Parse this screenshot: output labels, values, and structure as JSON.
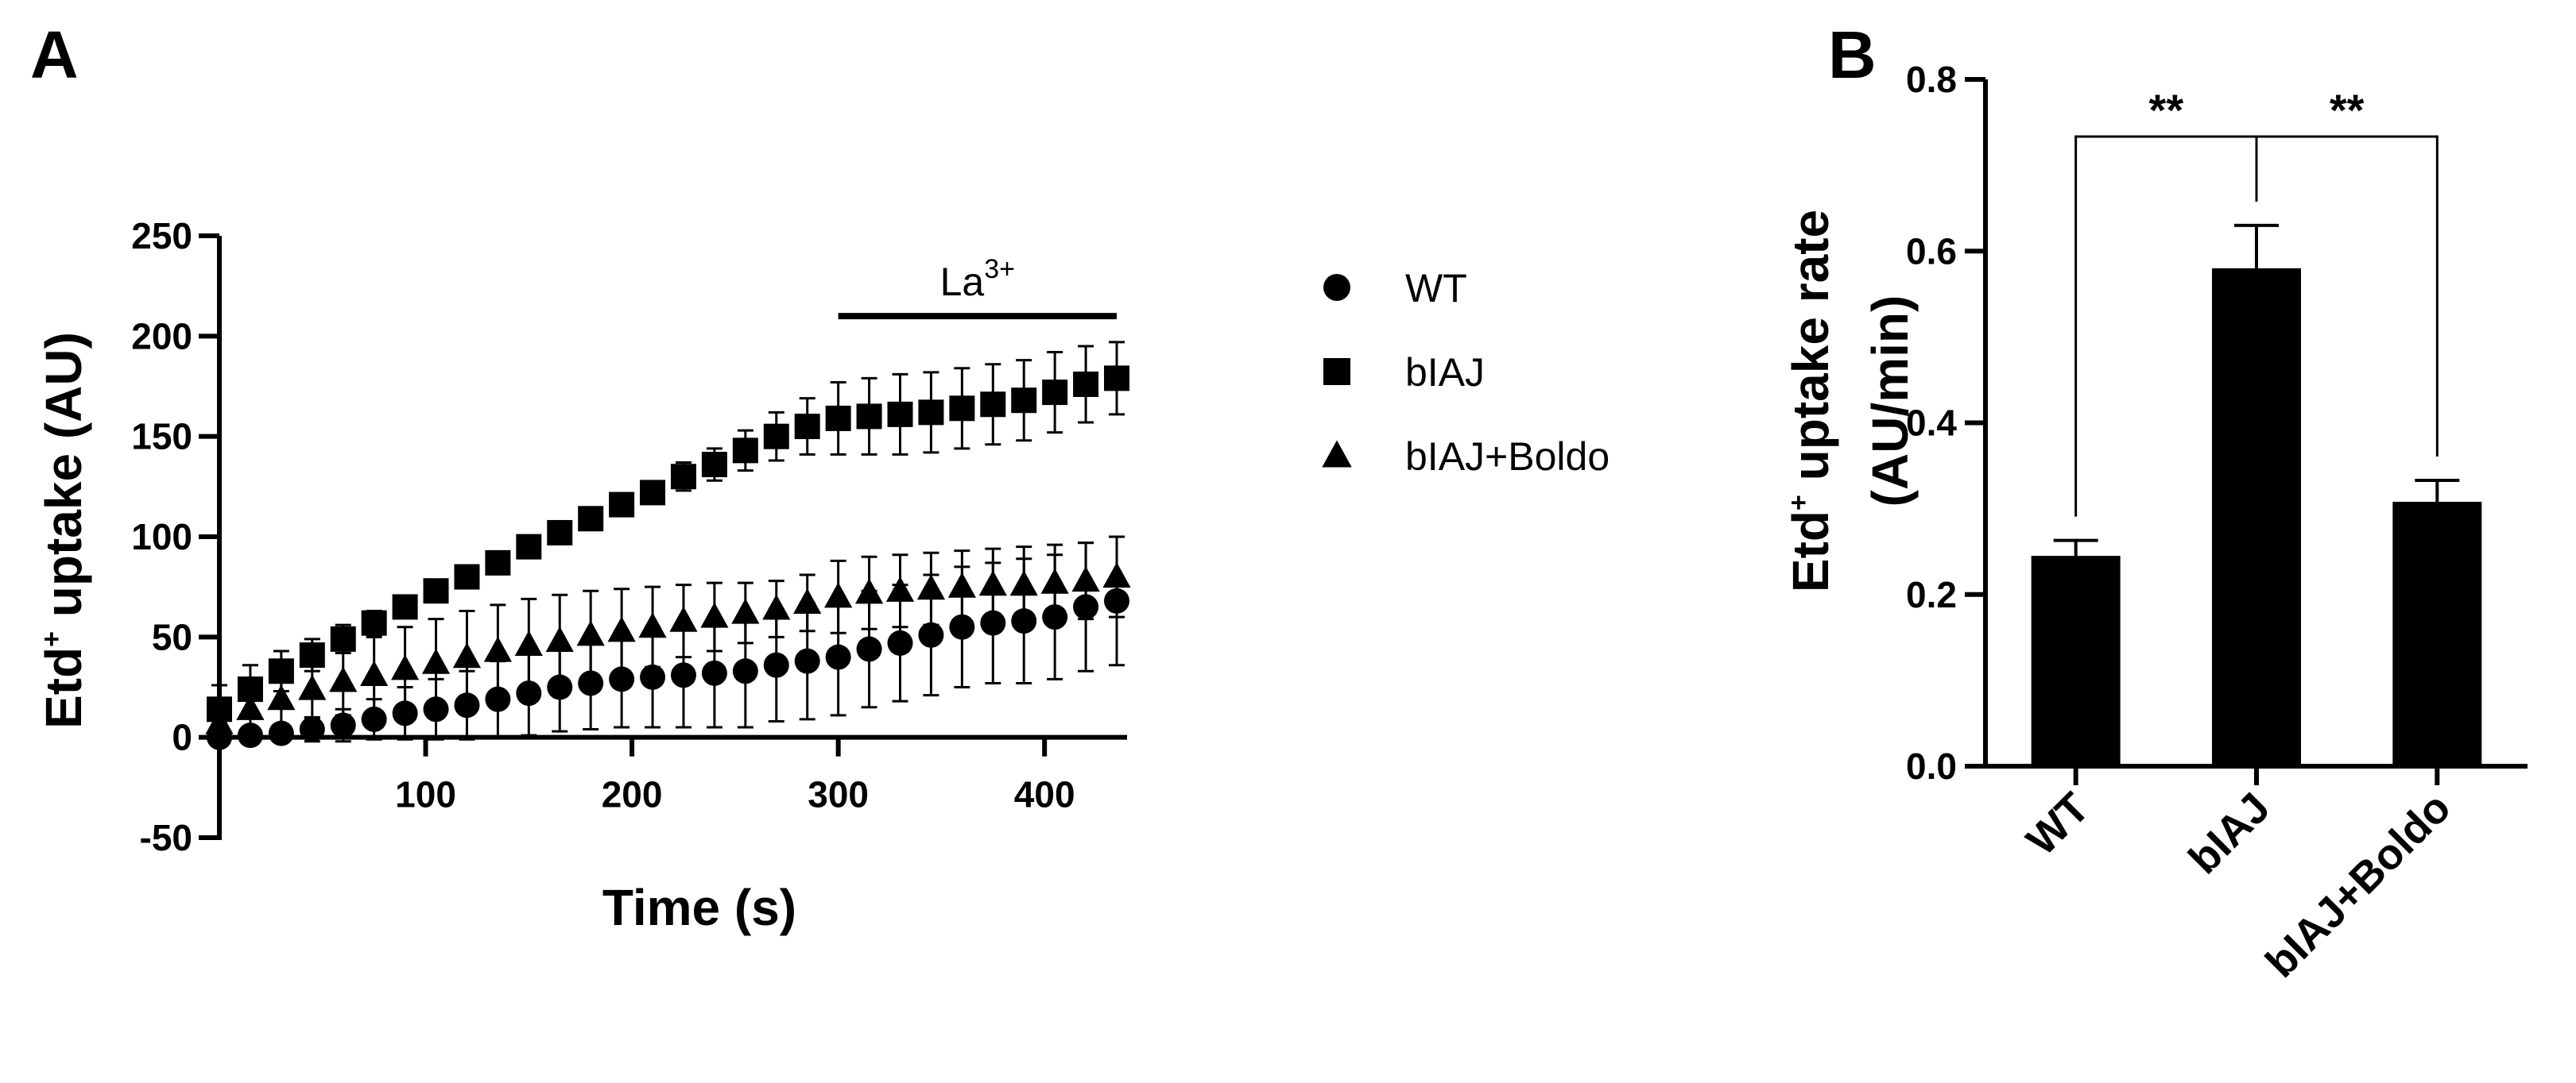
{
  "chart_data": [
    {
      "panel": "A",
      "type": "scatter",
      "xlabel": "Time (s)",
      "ylabel_main": "Etd",
      "ylabel_sup": "+",
      "ylabel_rest": " uptake (AU)",
      "xlim": [
        0,
        440
      ],
      "ylim": [
        -50,
        250
      ],
      "xticks": [
        100,
        200,
        300,
        400
      ],
      "yticks": [
        -50,
        0,
        50,
        100,
        150,
        200,
        250
      ],
      "x": [
        0,
        15,
        30,
        45,
        60,
        75,
        90,
        105,
        120,
        135,
        150,
        165,
        180,
        195,
        210,
        225,
        240,
        255,
        270,
        285,
        300,
        315,
        330,
        345,
        360,
        375,
        390,
        405,
        420,
        435
      ],
      "series": [
        {
          "name": "WT",
          "marker": "circle",
          "values": [
            0,
            1,
            2,
            4,
            6,
            9,
            12,
            14,
            16,
            19,
            22,
            25,
            27,
            29,
            30,
            31,
            32,
            33,
            36,
            38,
            40,
            44,
            47,
            51,
            55,
            57,
            58,
            60,
            65,
            68
          ],
          "err": [
            3,
            3,
            4,
            6,
            8,
            10,
            13,
            15,
            17,
            19,
            21,
            22,
            23,
            24,
            25,
            26,
            27,
            28,
            28,
            29,
            29,
            29,
            29,
            30,
            30,
            30,
            31,
            31,
            32,
            32
          ]
        },
        {
          "name": "bIAJ",
          "marker": "square",
          "values": [
            14,
            24,
            33,
            41,
            49,
            57,
            65,
            73,
            80,
            87,
            95,
            102,
            109,
            116,
            122,
            130,
            136,
            143,
            150,
            155,
            159,
            160,
            161,
            162,
            164,
            166,
            168,
            172,
            176,
            179
          ],
          "err": [
            12,
            12,
            10,
            8,
            7,
            6,
            5,
            4,
            4,
            4,
            4,
            4,
            4,
            4,
            5,
            7,
            8,
            10,
            12,
            14,
            18,
            19,
            20,
            20,
            20,
            20,
            20,
            20,
            19,
            18
          ]
        },
        {
          "name": "bIAJ+Boldo",
          "marker": "triangle",
          "values": [
            7,
            14,
            19,
            24,
            28,
            31,
            34,
            37,
            40,
            43,
            46,
            48,
            51,
            53,
            55,
            58,
            60,
            62,
            64,
            67,
            70,
            72,
            73,
            74,
            75,
            76,
            76,
            77,
            78,
            80
          ],
          "err": [
            8,
            10,
            13,
            15,
            17,
            19,
            21,
            22,
            23,
            23,
            23,
            23,
            22,
            21,
            20,
            18,
            17,
            15,
            14,
            14,
            18,
            18,
            18,
            18,
            18,
            18,
            19,
            19,
            19,
            20
          ]
        }
      ],
      "legend": {
        "placement": "right"
      },
      "annotation": {
        "label_main": "La",
        "label_sup": "3+",
        "x_start": 300,
        "x_end": 435,
        "y": 210
      }
    },
    {
      "panel": "B",
      "type": "bar",
      "categories": [
        "WT",
        "bIAJ",
        "bIAJ+Boldo"
      ],
      "values": [
        0.245,
        0.58,
        0.308
      ],
      "err": [
        0.018,
        0.05,
        0.025
      ],
      "ylabel_line1_main": "Etd",
      "ylabel_line1_sup": "+",
      "ylabel_line1_rest": " uptake rate",
      "ylabel_line2": "(AU/min)",
      "ylim": [
        0,
        0.8
      ],
      "yticks": [
        "0.0",
        "0.2",
        "0.4",
        "0.6",
        "0.8"
      ],
      "significance": [
        {
          "from": 0,
          "to": 1,
          "label": "**"
        },
        {
          "from": 1,
          "to": 2,
          "label": "**"
        }
      ]
    }
  ],
  "colors": {
    "ink": "#000000",
    "background": "#ffffff"
  }
}
